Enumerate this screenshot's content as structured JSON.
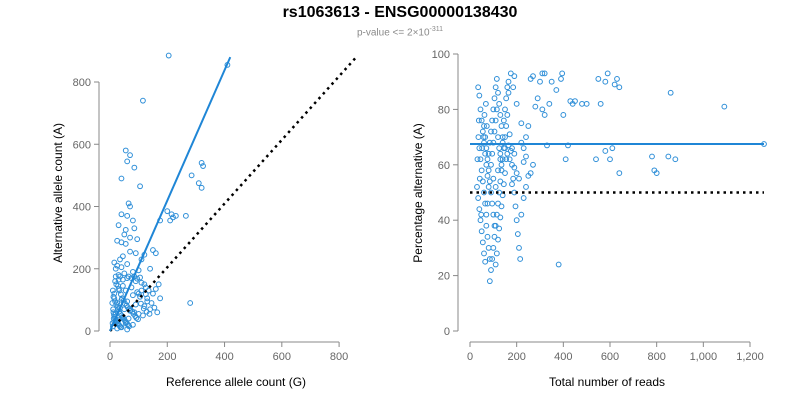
{
  "header": {
    "title": "rs1063613 - ENSG00000138430",
    "subtitle_prefix": "p-value <= 2×10",
    "subtitle_exp": "-311"
  },
  "colors": {
    "points": "#2f8fd8",
    "fit": "#1f86d6",
    "reference": "#000000",
    "axis": "#888888"
  },
  "chart_data": [
    {
      "type": "scatter",
      "title": "",
      "xlabel": "Reference allele count (G)",
      "ylabel": "Alternative allele count (A)",
      "xlim": [
        0,
        880
      ],
      "ylim": [
        0,
        890
      ],
      "xticks": [
        0,
        200,
        400,
        600,
        800
      ],
      "yticks": [
        0,
        200,
        400,
        600,
        800
      ],
      "xticklabels": [
        "0",
        "200",
        "400",
        "600",
        "800"
      ],
      "yticklabels": [
        "0",
        "200",
        "400",
        "600",
        "800"
      ],
      "fit_line": {
        "x": [
          0,
          420
        ],
        "y": [
          0,
          880
        ]
      },
      "reference_line": {
        "x": [
          0,
          860
        ],
        "y": [
          0,
          880
        ]
      },
      "points": [
        [
          205,
          885
        ],
        [
          410,
          855
        ],
        [
          115,
          740
        ],
        [
          55,
          580
        ],
        [
          70,
          565
        ],
        [
          60,
          545
        ],
        [
          85,
          525
        ],
        [
          320,
          540
        ],
        [
          325,
          530
        ],
        [
          40,
          490
        ],
        [
          285,
          500
        ],
        [
          310,
          475
        ],
        [
          320,
          460
        ],
        [
          105,
          465
        ],
        [
          65,
          410
        ],
        [
          70,
          400
        ],
        [
          40,
          375
        ],
        [
          60,
          370
        ],
        [
          80,
          355
        ],
        [
          200,
          385
        ],
        [
          215,
          375
        ],
        [
          230,
          370
        ],
        [
          220,
          365
        ],
        [
          175,
          355
        ],
        [
          265,
          370
        ],
        [
          210,
          355
        ],
        [
          30,
          340
        ],
        [
          55,
          325
        ],
        [
          85,
          330
        ],
        [
          50,
          310
        ],
        [
          70,
          300
        ],
        [
          95,
          295
        ],
        [
          40,
          285
        ],
        [
          55,
          280
        ],
        [
          25,
          290
        ],
        [
          150,
          260
        ],
        [
          160,
          250
        ],
        [
          120,
          245
        ],
        [
          110,
          230
        ],
        [
          70,
          255
        ],
        [
          90,
          250
        ],
        [
          45,
          240
        ],
        [
          35,
          230
        ],
        [
          15,
          220
        ],
        [
          25,
          210
        ],
        [
          60,
          215
        ],
        [
          40,
          205
        ],
        [
          140,
          200
        ],
        [
          100,
          195
        ],
        [
          20,
          200
        ],
        [
          80,
          190
        ],
        [
          50,
          185
        ],
        [
          30,
          180
        ],
        [
          60,
          170
        ],
        [
          90,
          160
        ],
        [
          110,
          155
        ],
        [
          120,
          150
        ],
        [
          45,
          145
        ],
        [
          75,
          140
        ],
        [
          30,
          135
        ],
        [
          55,
          130
        ],
        [
          95,
          125
        ],
        [
          15,
          120
        ],
        [
          80,
          115
        ],
        [
          105,
          110
        ],
        [
          130,
          105
        ],
        [
          40,
          100
        ],
        [
          60,
          95
        ],
        [
          25,
          90
        ],
        [
          90,
          85
        ],
        [
          120,
          80
        ],
        [
          140,
          70
        ],
        [
          280,
          90
        ],
        [
          35,
          75
        ],
        [
          50,
          70
        ],
        [
          70,
          65
        ],
        [
          85,
          60
        ],
        [
          100,
          55
        ],
        [
          115,
          50
        ],
        [
          20,
          55
        ],
        [
          45,
          45
        ],
        [
          65,
          40
        ],
        [
          30,
          35
        ],
        [
          15,
          30
        ],
        [
          55,
          25
        ],
        [
          80,
          20
        ],
        [
          10,
          15
        ],
        [
          40,
          12
        ],
        [
          25,
          8
        ],
        [
          60,
          5
        ],
        [
          18,
          160
        ],
        [
          22,
          150
        ],
        [
          28,
          145
        ],
        [
          33,
          130
        ],
        [
          38,
          118
        ],
        [
          42,
          105
        ],
        [
          48,
          98
        ],
        [
          52,
          88
        ],
        [
          58,
          82
        ],
        [
          62,
          76
        ],
        [
          68,
          72
        ],
        [
          72,
          68
        ],
        [
          78,
          62
        ],
        [
          82,
          55
        ],
        [
          88,
          48
        ],
        [
          92,
          42
        ],
        [
          98,
          38
        ],
        [
          15,
          105
        ],
        [
          18,
          95
        ],
        [
          22,
          85
        ],
        [
          26,
          78
        ],
        [
          29,
          70
        ],
        [
          32,
          62
        ],
        [
          36,
          55
        ],
        [
          40,
          50
        ],
        [
          44,
          45
        ],
        [
          47,
          40
        ],
        [
          51,
          35
        ],
        [
          54,
          30
        ],
        [
          57,
          28
        ],
        [
          61,
          22
        ],
        [
          64,
          18
        ],
        [
          67,
          15
        ],
        [
          12,
          60
        ],
        [
          14,
          52
        ],
        [
          16,
          45
        ],
        [
          19,
          40
        ],
        [
          21,
          35
        ],
        [
          23,
          30
        ],
        [
          27,
          25
        ],
        [
          31,
          20
        ],
        [
          34,
          16
        ],
        [
          37,
          12
        ],
        [
          170,
          150
        ],
        [
          160,
          135
        ],
        [
          150,
          120
        ],
        [
          175,
          105
        ],
        [
          135,
          130
        ],
        [
          125,
          140
        ],
        [
          145,
          90
        ],
        [
          155,
          75
        ],
        [
          165,
          60
        ],
        [
          35,
          175
        ],
        [
          45,
          165
        ],
        [
          65,
          175
        ],
        [
          75,
          170
        ],
        [
          85,
          175
        ],
        [
          95,
          168
        ],
        [
          105,
          172
        ],
        [
          20,
          175
        ],
        [
          30,
          165
        ],
        [
          10,
          130
        ],
        [
          12,
          110
        ],
        [
          8,
          90
        ],
        [
          11,
          70
        ],
        [
          13,
          40
        ],
        [
          9,
          25
        ],
        [
          100,
          120
        ],
        [
          110,
          130
        ],
        [
          125,
          118
        ],
        [
          130,
          95
        ],
        [
          108,
          88
        ],
        [
          118,
          72
        ],
        [
          128,
          62
        ],
        [
          138,
          55
        ]
      ]
    },
    {
      "type": "scatter",
      "title": "",
      "xlabel": "Total number of reads",
      "ylabel": "Percentage alternative (A)",
      "xlim": [
        0,
        1260
      ],
      "ylim": [
        0,
        100
      ],
      "xticks": [
        0,
        200,
        400,
        600,
        800,
        1000,
        1200
      ],
      "yticks": [
        0,
        20,
        40,
        60,
        80,
        100
      ],
      "xticklabels": [
        "0",
        "200",
        "400",
        "600",
        "800",
        "1,000",
        "1,200"
      ],
      "yticklabels": [
        "0",
        "20",
        "40",
        "60",
        "80",
        "100"
      ],
      "fit_line": {
        "x": [
          0,
          1260
        ],
        "y": [
          67.5,
          67.5
        ]
      },
      "reference_line": {
        "x": [
          0,
          1260
        ],
        "y": [
          50,
          50
        ]
      },
      "points": [
        [
          1260,
          67.5
        ],
        [
          1090,
          81
        ],
        [
          860,
          86
        ],
        [
          880,
          62
        ],
        [
          850,
          63
        ],
        [
          790,
          58
        ],
        [
          780,
          63
        ],
        [
          800,
          57
        ],
        [
          640,
          57
        ],
        [
          640,
          88
        ],
        [
          630,
          91
        ],
        [
          620,
          89
        ],
        [
          590,
          93
        ],
        [
          580,
          90
        ],
        [
          560,
          82
        ],
        [
          550,
          91
        ],
        [
          600,
          62
        ],
        [
          610,
          66
        ],
        [
          580,
          65
        ],
        [
          540,
          62
        ],
        [
          480,
          82
        ],
        [
          500,
          82
        ],
        [
          450,
          83
        ],
        [
          430,
          83
        ],
        [
          440,
          82
        ],
        [
          420,
          67
        ],
        [
          400,
          78
        ],
        [
          410,
          62
        ],
        [
          380,
          24
        ],
        [
          370,
          87
        ],
        [
          390,
          91
        ],
        [
          395,
          93
        ],
        [
          340,
          82
        ],
        [
          350,
          90
        ],
        [
          320,
          93
        ],
        [
          310,
          93
        ],
        [
          300,
          90
        ],
        [
          310,
          80
        ],
        [
          320,
          78
        ],
        [
          330,
          67
        ],
        [
          280,
          81
        ],
        [
          290,
          84
        ],
        [
          270,
          92
        ],
        [
          260,
          91
        ],
        [
          250,
          74
        ],
        [
          240,
          70
        ],
        [
          230,
          61
        ],
        [
          220,
          68
        ],
        [
          210,
          55
        ],
        [
          200,
          57
        ],
        [
          190,
          59
        ],
        [
          180,
          53
        ],
        [
          270,
          60
        ],
        [
          260,
          57
        ],
        [
          250,
          56
        ],
        [
          240,
          63
        ],
        [
          230,
          66
        ],
        [
          220,
          75
        ],
        [
          200,
          82
        ],
        [
          190,
          92
        ],
        [
          185,
          88
        ],
        [
          175,
          93
        ],
        [
          165,
          86
        ],
        [
          160,
          78
        ],
        [
          155,
          74
        ],
        [
          150,
          70
        ],
        [
          145,
          66
        ],
        [
          140,
          62
        ],
        [
          135,
          58
        ],
        [
          130,
          54
        ],
        [
          125,
          50
        ],
        [
          120,
          46
        ],
        [
          115,
          42
        ],
        [
          110,
          38
        ],
        [
          105,
          34
        ],
        [
          100,
          30
        ],
        [
          95,
          26
        ],
        [
          90,
          22
        ],
        [
          85,
          18
        ],
        [
          155,
          62
        ],
        [
          150,
          57
        ],
        [
          145,
          53
        ],
        [
          140,
          49
        ],
        [
          135,
          45
        ],
        [
          130,
          41
        ],
        [
          125,
          37
        ],
        [
          120,
          33
        ],
        [
          115,
          28
        ],
        [
          110,
          24
        ],
        [
          165,
          67
        ],
        [
          170,
          71
        ],
        [
          175,
          65
        ],
        [
          180,
          60
        ],
        [
          185,
          55
        ],
        [
          190,
          50
        ],
        [
          195,
          45
        ],
        [
          200,
          40
        ],
        [
          205,
          35
        ],
        [
          210,
          30
        ],
        [
          215,
          26
        ],
        [
          220,
          42
        ],
        [
          230,
          48
        ],
        [
          240,
          52
        ],
        [
          35,
          88
        ],
        [
          40,
          85
        ],
        [
          45,
          80
        ],
        [
          50,
          76
        ],
        [
          55,
          72
        ],
        [
          60,
          68
        ],
        [
          65,
          64
        ],
        [
          70,
          60
        ],
        [
          75,
          56
        ],
        [
          80,
          52
        ],
        [
          30,
          52
        ],
        [
          35,
          48
        ],
        [
          40,
          44
        ],
        [
          45,
          40
        ],
        [
          50,
          36
        ],
        [
          55,
          32
        ],
        [
          60,
          28
        ],
        [
          65,
          25
        ],
        [
          70,
          42
        ],
        [
          75,
          46
        ],
        [
          80,
          64
        ],
        [
          85,
          68
        ],
        [
          90,
          72
        ],
        [
          95,
          76
        ],
        [
          100,
          80
        ],
        [
          105,
          84
        ],
        [
          110,
          88
        ],
        [
          115,
          91
        ],
        [
          120,
          86
        ],
        [
          125,
          82
        ],
        [
          130,
          78
        ],
        [
          135,
          74
        ],
        [
          140,
          70
        ],
        [
          145,
          76
        ],
        [
          150,
          80
        ],
        [
          155,
          84
        ],
        [
          160,
          88
        ],
        [
          165,
          90
        ],
        [
          60,
          74
        ],
        [
          65,
          70
        ],
        [
          70,
          66
        ],
        [
          75,
          62
        ],
        [
          80,
          58
        ],
        [
          85,
          54
        ],
        [
          90,
          50
        ],
        [
          95,
          46
        ],
        [
          100,
          42
        ],
        [
          105,
          38
        ],
        [
          40,
          66
        ],
        [
          45,
          62
        ],
        [
          50,
          58
        ],
        [
          55,
          54
        ],
        [
          60,
          50
        ],
        [
          65,
          46
        ],
        [
          70,
          38
        ],
        [
          75,
          34
        ],
        [
          80,
          30
        ],
        [
          85,
          26
        ],
        [
          90,
          60
        ],
        [
          95,
          64
        ],
        [
          100,
          68
        ],
        [
          105,
          72
        ],
        [
          110,
          76
        ],
        [
          115,
          80
        ],
        [
          120,
          70
        ],
        [
          125,
          66
        ],
        [
          130,
          62
        ],
        [
          135,
          60
        ],
        [
          100,
          55
        ],
        [
          110,
          52
        ],
        [
          120,
          58
        ],
        [
          130,
          64
        ],
        [
          140,
          68
        ],
        [
          150,
          66
        ],
        [
          160,
          64
        ],
        [
          170,
          62
        ],
        [
          180,
          66
        ],
        [
          190,
          64
        ],
        [
          32,
          62
        ],
        [
          36,
          70
        ],
        [
          38,
          76
        ],
        [
          42,
          55
        ],
        [
          48,
          42
        ],
        [
          52,
          66
        ],
        [
          58,
          70
        ],
        [
          62,
          78
        ],
        [
          68,
          82
        ],
        [
          72,
          74
        ]
      ]
    }
  ]
}
